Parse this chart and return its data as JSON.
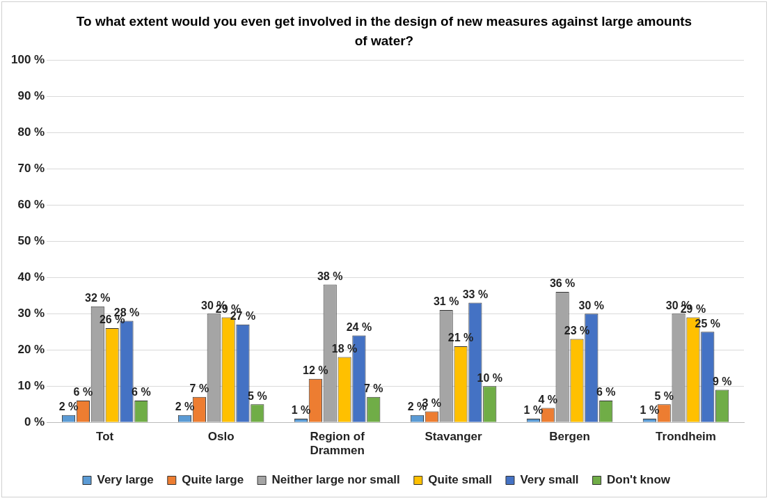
{
  "chart_data": {
    "type": "bar",
    "title": "To what extent would you even get involved in the design of new measures against large amounts of water?",
    "categories": [
      "Tot",
      "Oslo",
      "Region of Drammen",
      "Stavanger",
      "Bergen",
      "Trondheim"
    ],
    "series": [
      {
        "name": "Very large",
        "color": "#5b9bd5",
        "values": [
          2,
          2,
          1,
          2,
          1,
          1
        ],
        "value_labels": [
          "2 %",
          "2 %",
          "1 %",
          "2 %",
          "1 %",
          "1 %"
        ]
      },
      {
        "name": "Quite large",
        "color": "#ed7d31",
        "values": [
          6,
          7,
          12,
          3,
          4,
          5
        ],
        "value_labels": [
          "6 %",
          "7 %",
          "12 %",
          "3 %",
          "4 %",
          "5 %"
        ]
      },
      {
        "name": "Neither large nor small",
        "color": "#a5a5a5",
        "values": [
          32,
          30,
          38,
          31,
          36,
          30
        ],
        "value_labels": [
          "32 %",
          "30 %",
          "38 %",
          "31 %",
          "36 %",
          "30 %"
        ]
      },
      {
        "name": "Quite small",
        "color": "#ffc000",
        "values": [
          26,
          29,
          18,
          21,
          23,
          29
        ],
        "value_labels": [
          "26 %",
          "29 %",
          "18 %",
          "21 %",
          "23 %",
          "29 %"
        ]
      },
      {
        "name": "Very small",
        "color": "#4472c4",
        "values": [
          28,
          27,
          24,
          33,
          30,
          25
        ],
        "value_labels": [
          "28 %",
          "27 %",
          "24 %",
          "33 %",
          "30 %",
          "25 %"
        ]
      },
      {
        "name": "Don't know",
        "color": "#70ad47",
        "values": [
          6,
          5,
          7,
          10,
          6,
          9
        ],
        "value_labels": [
          "6 %",
          "5 %",
          "7 %",
          "10 %",
          "6 %",
          "9 %"
        ]
      }
    ],
    "ylim": [
      0,
      100
    ],
    "yticks": [
      {
        "value": 0,
        "label": "0 %"
      },
      {
        "value": 10,
        "label": "10 %"
      },
      {
        "value": 20,
        "label": "20 %"
      },
      {
        "value": 30,
        "label": "30 %"
      },
      {
        "value": 40,
        "label": "40 %"
      },
      {
        "value": 50,
        "label": "50 %"
      },
      {
        "value": 60,
        "label": "60 %"
      },
      {
        "value": 70,
        "label": "70 %"
      },
      {
        "value": 80,
        "label": "80 %"
      },
      {
        "value": 90,
        "label": "90 %"
      },
      {
        "value": 100,
        "label": "100 %"
      }
    ],
    "grid": "y",
    "legend": "bottom"
  }
}
